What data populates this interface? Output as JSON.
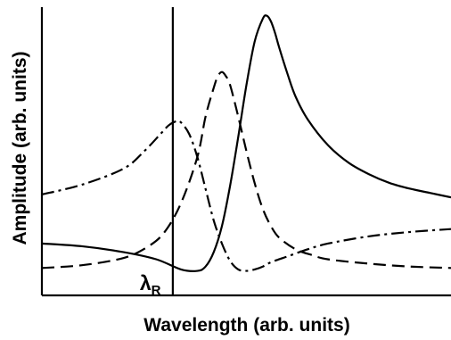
{
  "chart_data": {
    "type": "line",
    "title": "",
    "xlabel": "Wavelength (arb. units)",
    "ylabel": "Amplitude (arb. units)",
    "xlim": [
      0,
      100
    ],
    "ylim": [
      0,
      100
    ],
    "grid": false,
    "legend": "none",
    "ticks": "none",
    "vertical_marker": {
      "x": 32,
      "label": "λ",
      "subscript": "R"
    },
    "series": [
      {
        "style": "solid",
        "x": [
          0,
          10,
          20,
          28,
          34,
          38,
          40,
          42,
          44,
          46,
          48,
          50,
          52,
          54,
          55,
          56,
          57,
          58,
          60,
          62,
          65,
          70,
          75,
          80,
          85,
          90,
          95,
          100
        ],
        "y": [
          18,
          17,
          15,
          12.5,
          9,
          8.5,
          10,
          15,
          24,
          38,
          55,
          73,
          88,
          96,
          97,
          95,
          91,
          86,
          77,
          69,
          61,
          52,
          46,
          42,
          39,
          37,
          35.5,
          34
        ]
      },
      {
        "style": "dashed",
        "x": [
          0,
          10,
          20,
          26,
          30,
          34,
          38,
          40,
          42,
          43,
          44,
          45,
          46,
          48,
          50,
          52,
          54,
          56,
          58,
          62,
          66,
          70,
          80,
          90,
          100
        ],
        "y": [
          9.5,
          10.5,
          13,
          17,
          22,
          32,
          48,
          62,
          72,
          76,
          77.5,
          76,
          73,
          62,
          50,
          39,
          30,
          24,
          20,
          16,
          14,
          12.5,
          11,
          10,
          9.5
        ]
      },
      {
        "style": "dashdot",
        "x": [
          0,
          10,
          20,
          25,
          29,
          31,
          33,
          34,
          36,
          38,
          40,
          42,
          44,
          46,
          48,
          50,
          52,
          54,
          56,
          60,
          65,
          70,
          80,
          90,
          100
        ],
        "y": [
          35,
          38.5,
          44,
          50,
          56,
          59,
          60.5,
          60,
          56,
          48,
          37,
          26,
          18,
          12,
          9,
          8.5,
          9,
          10,
          11.5,
          13.5,
          16,
          18,
          20.5,
          22,
          23
        ]
      }
    ]
  }
}
